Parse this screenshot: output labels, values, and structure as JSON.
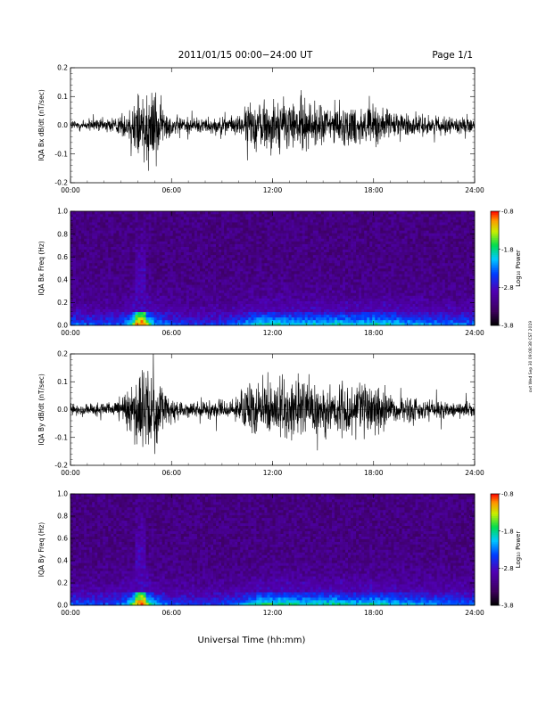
{
  "header": {
    "title": "2011/01/15  00:00−24:00 UT",
    "page": "Page 1/1"
  },
  "xlabel": "Universal Time (hh:mm)",
  "side_stamp": "ovt Wed Sep 30 09:08:38 CST 2019",
  "chart_data": [
    {
      "type": "line",
      "ylabel": "IQA Bx dB/dt (nT/sec)",
      "xlim": [
        0,
        24
      ],
      "ylim": [
        -0.2,
        0.2
      ],
      "x_tick_labels": [
        "00:00",
        "06:00",
        "12:00",
        "18:00",
        "24:00"
      ],
      "y_tick_labels": [
        "-0.2",
        "-0.1",
        "0.0",
        "0.1",
        "0.2"
      ],
      "envelope": {
        "x": [
          0,
          1,
          2,
          3,
          3.5,
          3.8,
          4.0,
          4.3,
          4.6,
          5.0,
          5.5,
          6,
          7,
          8,
          9,
          10,
          10.5,
          11,
          12,
          13,
          14,
          15,
          16,
          17,
          18,
          19,
          20,
          21,
          22,
          23,
          24
        ],
        "amp": [
          0.03,
          0.03,
          0.035,
          0.05,
          0.08,
          0.2,
          0.2,
          0.2,
          0.2,
          0.2,
          0.09,
          0.05,
          0.04,
          0.04,
          0.04,
          0.05,
          0.1,
          0.12,
          0.13,
          0.13,
          0.12,
          0.1,
          0.09,
          0.1,
          0.1,
          0.07,
          0.06,
          0.05,
          0.04,
          0.04,
          0.03
        ]
      }
    },
    {
      "type": "heatmap",
      "ylabel": "IQA Bx Freq (Hz)",
      "xlim": [
        0,
        24
      ],
      "ylim": [
        0,
        1.0
      ],
      "x_tick_labels": [
        "00:00",
        "06:00",
        "12:00",
        "18:00",
        "24:00"
      ],
      "y_tick_labels": [
        "0.0",
        "0.2",
        "0.4",
        "0.6",
        "0.8",
        "1.0"
      ],
      "colorbar": {
        "label": "Log₁₀ Power",
        "range": [
          -3.8,
          -0.8
        ],
        "tick_labels": [
          "-0.8",
          "-1.8",
          "-2.8",
          "-3.8"
        ]
      },
      "intensity_profile": {
        "x": [
          0,
          2,
          3,
          3.5,
          4,
          4.3,
          4.6,
          5,
          6,
          8,
          10,
          11,
          12,
          14,
          16,
          17,
          18,
          20,
          22,
          24
        ],
        "level": [
          0.35,
          0.3,
          0.35,
          0.5,
          0.85,
          0.9,
          0.7,
          0.45,
          0.3,
          0.25,
          0.35,
          0.55,
          0.55,
          0.5,
          0.55,
          0.5,
          0.55,
          0.45,
          0.4,
          0.35
        ]
      }
    },
    {
      "type": "line",
      "ylabel": "IQA By dB/dt (nT/sec)",
      "xlim": [
        0,
        24
      ],
      "ylim": [
        -0.2,
        0.2
      ],
      "x_tick_labels": [
        "00:00",
        "06:00",
        "12:00",
        "18:00",
        "24:00"
      ],
      "y_tick_labels": [
        "-0.2",
        "-0.1",
        "0.0",
        "0.1",
        "0.2"
      ],
      "envelope": {
        "x": [
          0,
          1,
          2,
          3,
          3.5,
          3.8,
          4.0,
          4.3,
          4.6,
          5.0,
          5.5,
          6,
          7,
          8,
          9,
          10,
          10.5,
          11,
          12,
          13,
          14,
          15,
          16,
          17,
          18,
          19,
          20,
          21,
          22,
          23,
          24
        ],
        "amp": [
          0.03,
          0.03,
          0.035,
          0.06,
          0.1,
          0.2,
          0.2,
          0.2,
          0.2,
          0.2,
          0.1,
          0.05,
          0.04,
          0.04,
          0.045,
          0.05,
          0.12,
          0.14,
          0.15,
          0.15,
          0.14,
          0.12,
          0.12,
          0.13,
          0.12,
          0.08,
          0.07,
          0.06,
          0.05,
          0.04,
          0.035
        ]
      }
    },
    {
      "type": "heatmap",
      "ylabel": "IQA By Freq (Hz)",
      "xlim": [
        0,
        24
      ],
      "ylim": [
        0,
        1.0
      ],
      "x_tick_labels": [
        "00:00",
        "06:00",
        "12:00",
        "18:00",
        "24:00"
      ],
      "y_tick_labels": [
        "0.0",
        "0.2",
        "0.4",
        "0.6",
        "0.8",
        "1.0"
      ],
      "colorbar": {
        "label": "Log₁₀ Power",
        "range": [
          -3.8,
          -0.8
        ],
        "tick_labels": [
          "-0.8",
          "-1.8",
          "-2.8",
          "-3.8"
        ]
      },
      "intensity_profile": {
        "x": [
          0,
          2,
          3,
          3.5,
          4,
          4.3,
          4.6,
          5,
          6,
          8,
          10,
          11,
          12,
          14,
          16,
          17,
          18,
          20,
          22,
          24
        ],
        "level": [
          0.35,
          0.3,
          0.35,
          0.5,
          0.85,
          0.9,
          0.7,
          0.45,
          0.3,
          0.25,
          0.35,
          0.55,
          0.6,
          0.55,
          0.55,
          0.5,
          0.55,
          0.45,
          0.4,
          0.35
        ]
      }
    }
  ]
}
